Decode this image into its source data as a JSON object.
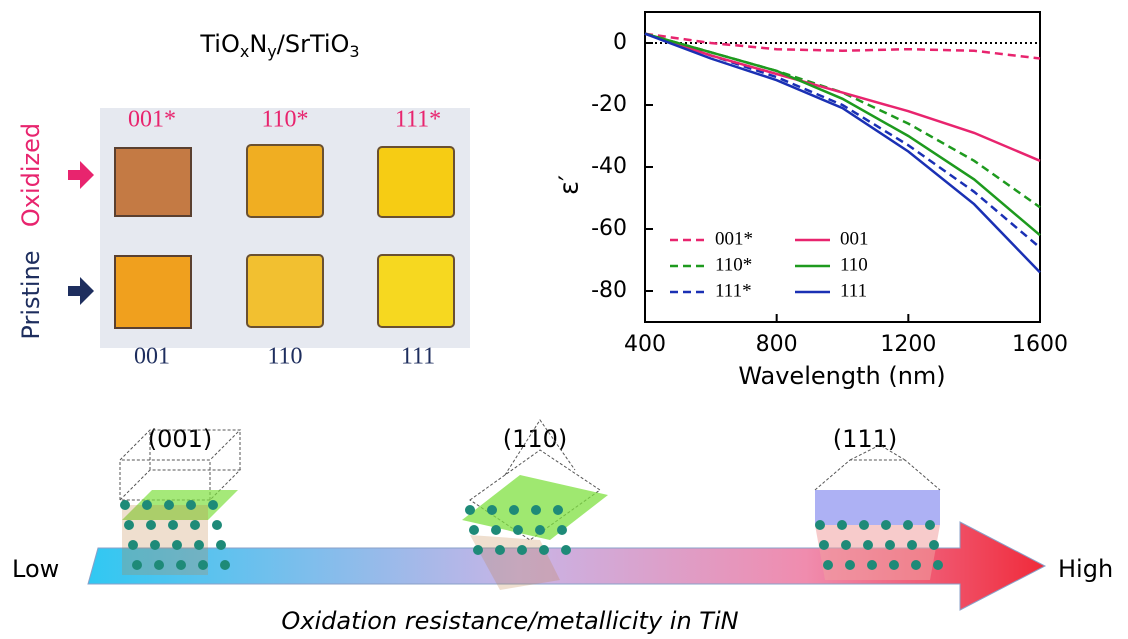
{
  "chart_data": {
    "type": "line",
    "x": [
      400,
      600,
      800,
      1000,
      1200,
      1400,
      1600
    ],
    "series": [
      {
        "name": "001*",
        "color": "#e8246e",
        "style": "dashed",
        "values": [
          3,
          0,
          -2,
          -2.5,
          -2,
          -2.5,
          -5
        ]
      },
      {
        "name": "110*",
        "color": "#1e9a1e",
        "style": "dashed",
        "values": [
          3,
          -3,
          -9,
          -16,
          -26,
          -38,
          -53
        ]
      },
      {
        "name": "111*",
        "color": "#1a30b4",
        "style": "dashed",
        "values": [
          3,
          -4,
          -11,
          -20,
          -33,
          -48,
          -66
        ]
      },
      {
        "name": "001",
        "color": "#e8246e",
        "style": "solid",
        "values": [
          3,
          -4,
          -10,
          -16,
          -22,
          -29,
          -38
        ]
      },
      {
        "name": "110",
        "color": "#1e9a1e",
        "style": "solid",
        "values": [
          3,
          -3,
          -9,
          -18,
          -30,
          -44,
          -62
        ]
      },
      {
        "name": "111",
        "color": "#1a30b4",
        "style": "solid",
        "values": [
          3,
          -5,
          -12,
          -21,
          -35,
          -52,
          -74
        ]
      }
    ],
    "xlim": [
      400,
      1600
    ],
    "xticks": [
      400,
      800,
      1200,
      1600
    ],
    "ylim": [
      -90,
      10
    ],
    "yticks": [
      0,
      -20,
      -40,
      -60,
      -80
    ],
    "reference_line": 0,
    "xlabel": "Wavelength (nm)",
    "ylabel": "ε′",
    "legend": "lower left"
  },
  "figure": {
    "title_parts": [
      "TiO",
      "x",
      "N",
      "y",
      "/SrTiO",
      "3"
    ],
    "top_labels": [
      "001*",
      "110*",
      "111*"
    ],
    "bottom_labels": [
      "001",
      "110",
      "111"
    ],
    "row_labels": [
      "Oxidized",
      "Pristine"
    ],
    "orientations": [
      "(001)",
      "(110)",
      "(111)"
    ],
    "low": "Low",
    "high": "High",
    "caption": "Oxidation resistance/metallicity in TiN"
  }
}
